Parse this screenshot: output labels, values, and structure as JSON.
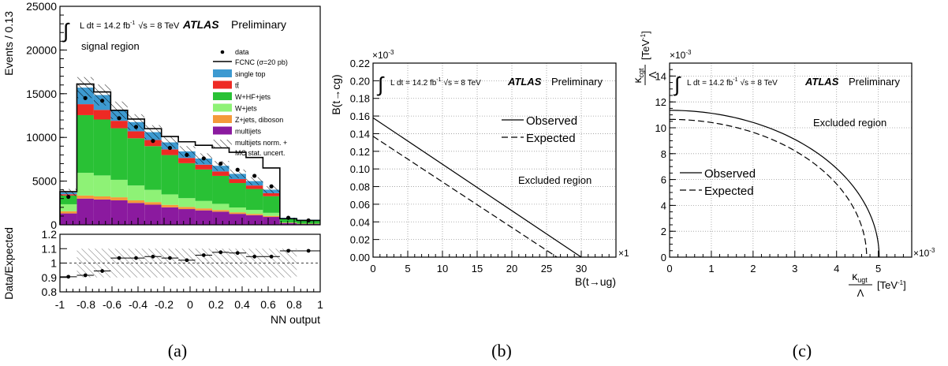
{
  "colors": {
    "single_top": "#3d9ad1",
    "ttbar": "#ee2a24",
    "whf": "#29c135",
    "wjets": "#8ef276",
    "zjets": "#f49a3a",
    "multijets": "#8b1a9f",
    "fcnc": "#000000",
    "grid": "#9a9a9a"
  },
  "captions": [
    "(a)",
    "(b)",
    "(c)"
  ],
  "chart_data": [
    {
      "id": "a",
      "type": "bar",
      "ylabel": "Events / 0.13",
      "xlabel": "NN output",
      "ratio_ylabel": "Data/Expected",
      "lumi_label": "L dt = 14.2 fb",
      "lumi_sup": "-1",
      "energy_label": "√s = 8 TeV",
      "atlas": "ATLAS",
      "prelim": "Preliminary",
      "region": "signal region",
      "legend": {
        "data": "data",
        "fcnc": "FCNC (σ=20 pb)",
        "single_top": "single top",
        "ttbar": "tt̄",
        "whf": "W+HF+jets",
        "wjets": "W+jets",
        "zjets": "Z+jets, diboson",
        "multijets": "multijets",
        "unc1": "multijets norm. +",
        "unc2": "MC stat. uncert."
      },
      "xlim": [
        -1,
        1
      ],
      "ylim": [
        0,
        25000
      ],
      "ratio_ylim": [
        0.8,
        1.2
      ],
      "xticks": [
        "-1",
        "-0.8",
        "-0.6",
        "-0.4",
        "-0.2",
        "0",
        "0.2",
        "0.4",
        "0.6",
        "0.8",
        "1"
      ],
      "yticks": [
        "0",
        "5000",
        "10000",
        "15000",
        "20000",
        "25000"
      ],
      "ratio_yticks": [
        "0.8",
        "0.9",
        "1",
        "1.1",
        "1.2"
      ],
      "bin_edges": [
        -1,
        -0.87,
        -0.74,
        -0.61,
        -0.48,
        -0.35,
        -0.22,
        -0.09,
        0.04,
        0.17,
        0.3,
        0.43,
        0.56,
        0.69,
        0.82,
        1.0
      ],
      "series": [
        {
          "key": "multijets",
          "values": [
            1300,
            3000,
            2900,
            2800,
            2500,
            2300,
            2000,
            1800,
            1650,
            1500,
            1250,
            1100,
            900,
            200,
            100
          ]
        },
        {
          "key": "zjets",
          "values": [
            250,
            350,
            350,
            350,
            300,
            300,
            280,
            250,
            230,
            200,
            180,
            150,
            120,
            50,
            30
          ]
        },
        {
          "key": "wjets",
          "values": [
            800,
            2600,
            2400,
            2000,
            1700,
            1400,
            1200,
            1000,
            850,
            700,
            550,
            450,
            350,
            0,
            0
          ]
        },
        {
          "key": "whf",
          "values": [
            1000,
            6600,
            6400,
            5900,
            5400,
            5000,
            4500,
            4000,
            3600,
            3200,
            2800,
            2400,
            1900,
            450,
            350
          ]
        },
        {
          "key": "ttbar",
          "values": [
            150,
            1250,
            1100,
            850,
            800,
            700,
            650,
            600,
            550,
            500,
            450,
            400,
            350,
            50,
            50
          ]
        },
        {
          "key": "single_top",
          "values": [
            200,
            1900,
            1700,
            1200,
            1050,
            900,
            800,
            750,
            700,
            650,
            600,
            500,
            400,
            50,
            50
          ]
        }
      ],
      "uncertainty": [
        400,
        1200,
        1200,
        1000,
        900,
        800,
        700,
        600,
        600,
        550,
        500,
        450,
        400,
        0,
        0
      ],
      "fcnc": [
        3800,
        16100,
        15200,
        13100,
        12100,
        11000,
        10100,
        9500,
        9100,
        8800,
        8300,
        7700,
        6500,
        700,
        500
      ],
      "data": [
        3200,
        14500,
        14200,
        12200,
        11200,
        9600,
        8800,
        8000,
        7600,
        7000,
        6300,
        5600,
        4400,
        800,
        500
      ],
      "ratio": [
        0.905,
        0.915,
        0.945,
        1.035,
        1.035,
        1.045,
        1.035,
        1.02,
        1.055,
        1.075,
        1.07,
        1.045,
        1.045,
        1.085,
        1.085
      ],
      "ratio_band": 0.1
    },
    {
      "id": "b",
      "type": "line",
      "ylabel": "B(t→cg)",
      "xlabel": "B(t→ug)",
      "y_exp": "×10",
      "y_exp_sup": "-3",
      "x_exp": "×1",
      "lumi_label": "L dt = 14.2 fb",
      "lumi_sup": "-1",
      "energy_label": "√s = 8 TeV",
      "atlas": "ATLAS",
      "prelim": "Preliminary",
      "excluded": "Excluded region",
      "xlim": [
        0,
        35
      ],
      "ylim": [
        0,
        0.22
      ],
      "xticks": [
        "0",
        "5",
        "10",
        "15",
        "20",
        "25",
        "30"
      ],
      "yticks": [
        "0.00",
        "0.02",
        "0.04",
        "0.06",
        "0.08",
        "0.10",
        "0.12",
        "0.14",
        "0.16",
        "0.18",
        "0.20",
        "0.22"
      ],
      "grid": true,
      "series": [
        {
          "name": "Observed",
          "style": "solid",
          "x": [
            0,
            30
          ],
          "y": [
            0.158,
            0
          ]
        },
        {
          "name": "Expected",
          "style": "dashed",
          "x": [
            0,
            26.5
          ],
          "y": [
            0.137,
            0
          ]
        }
      ]
    },
    {
      "id": "c",
      "type": "line",
      "ylabel_top": "κ",
      "ylabel_top_sub": "cgt",
      "ylabel_bottom": "Λ",
      "ylabel_unit": "[TeV",
      "ylabel_unit_sup": "-1",
      "ylabel_unit_end": "]",
      "xlabel_top": "κ",
      "xlabel_top_sub": "ugt",
      "xlabel_bottom": "Λ",
      "xlabel_unit": "[TeV",
      "xlabel_unit_sup": "-1",
      "xlabel_unit_end": "]",
      "y_exp": "×10",
      "y_exp_sup": "-3",
      "x_exp": "×10",
      "x_exp_sup": "-3",
      "lumi_label": "L dt = 14.2 fb",
      "lumi_sup": "-1",
      "energy_label": "√s = 8 TeV",
      "atlas": "ATLAS",
      "prelim": "Preliminary",
      "excluded": "Excluded region",
      "xlim": [
        0,
        5.8
      ],
      "ylim": [
        0,
        15
      ],
      "xticks": [
        "0",
        "1",
        "2",
        "3",
        "4",
        "5"
      ],
      "yticks": [
        "0",
        "2",
        "4",
        "6",
        "8",
        "10",
        "12",
        "14"
      ],
      "grid": true,
      "series": [
        {
          "name": "Observed",
          "style": "solid",
          "a": 5.02,
          "b": 11.35
        },
        {
          "name": "Expected",
          "style": "dashed",
          "a": 4.72,
          "b": 10.65
        }
      ]
    }
  ]
}
